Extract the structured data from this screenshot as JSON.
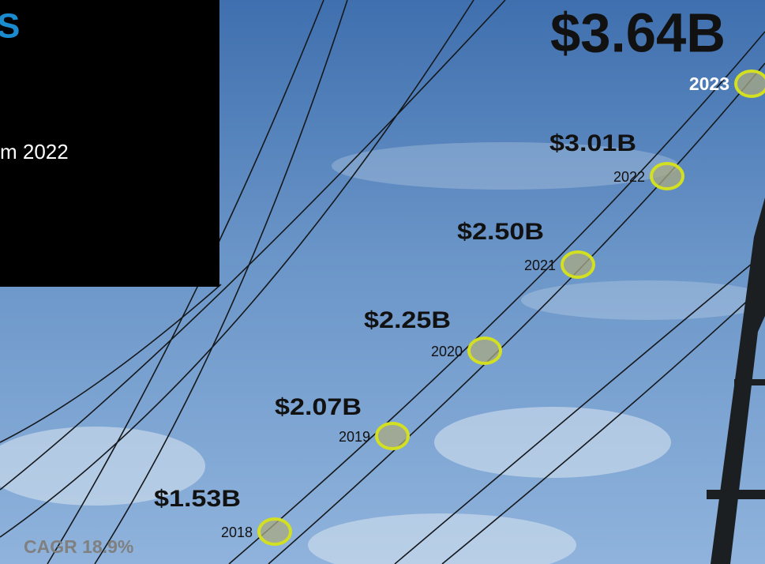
{
  "header": {
    "title": "S",
    "subtitle": "m 2022"
  },
  "milestones": [
    {
      "value": "$1.53B",
      "year": "2018"
    },
    {
      "value": "$2.07B",
      "year": "2019"
    },
    {
      "value": "$2.25B",
      "year": "2020"
    },
    {
      "value": "$2.50B",
      "year": "2021"
    },
    {
      "value": "$3.01B",
      "year": "2022"
    },
    {
      "value": "$3.64B",
      "year": "2023"
    }
  ],
  "cagr": "CAGR 18.9%"
}
